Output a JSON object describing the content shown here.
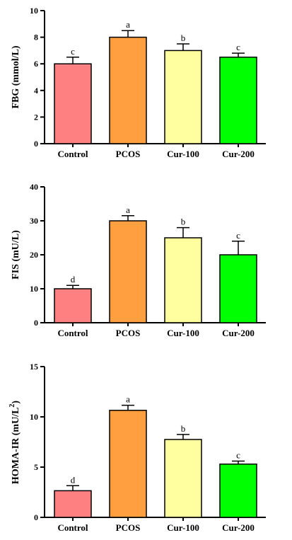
{
  "colors": [
    "#ff8080",
    "#ff9f3f",
    "#ffff9f",
    "#00ff00"
  ],
  "chart_data": [
    {
      "type": "bar",
      "categories": [
        "Control",
        "PCOS",
        "Cur-100",
        "Cur-200"
      ],
      "values": [
        6.0,
        8.0,
        7.0,
        6.5
      ],
      "errors": [
        0.5,
        0.5,
        0.5,
        0.3
      ],
      "sig_letters": [
        "c",
        "a",
        "b",
        "c"
      ],
      "ylabel": "FBG (mmol/L)",
      "ylabel_sup": "",
      "ylabel_end": "",
      "ylim": [
        0,
        10
      ],
      "yticks": [
        0,
        2,
        4,
        6,
        8,
        10
      ],
      "ytick_labels": [
        "0",
        "2",
        "4",
        "6",
        "8",
        "10"
      ]
    },
    {
      "type": "bar",
      "categories": [
        "Control",
        "PCOS",
        "Cur-100",
        "Cur-200"
      ],
      "values": [
        10,
        30,
        25,
        20
      ],
      "errors": [
        1,
        1.5,
        3,
        4
      ],
      "sig_letters": [
        "d",
        "a",
        "b",
        "c"
      ],
      "ylabel": "FIS (mU/L)",
      "ylabel_sup": "",
      "ylabel_end": "",
      "ylim": [
        0,
        40
      ],
      "yticks": [
        0,
        10,
        20,
        30,
        40
      ],
      "ytick_labels": [
        "0",
        "10",
        "20",
        "30",
        "40"
      ]
    },
    {
      "type": "bar",
      "categories": [
        "Control",
        "PCOS",
        "Cur-100",
        "Cur-200"
      ],
      "values": [
        2.65,
        10.65,
        7.75,
        5.3
      ],
      "errors": [
        0.5,
        0.5,
        0.5,
        0.3
      ],
      "sig_letters": [
        "d",
        "a",
        "b",
        "c"
      ],
      "ylabel": "HOMA-IR (mU/L",
      "ylabel_sup": "2",
      "ylabel_end": ")",
      "ylim": [
        0,
        15
      ],
      "yticks": [
        0,
        5,
        10,
        15
      ],
      "ytick_labels": [
        "0",
        "5",
        "10",
        "15"
      ]
    }
  ]
}
